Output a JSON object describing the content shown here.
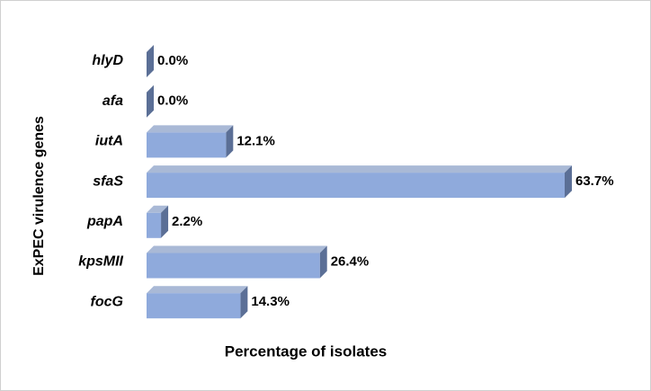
{
  "chart_data": {
    "type": "bar3d_horizontal",
    "axis_labels": {
      "y": "ExPEC virulence genes",
      "x": "Percentage of isolates"
    },
    "categories": [
      "hlyD",
      "afa",
      "iutA",
      "sfaS",
      "papA",
      "kpsMII",
      "focG"
    ],
    "values": [
      0,
      0,
      12.1,
      63.7,
      2.2,
      26.4,
      14.3
    ],
    "value_labels": [
      "0.0%",
      "0.0%",
      "12.1%",
      "63.7%",
      "2.2%",
      "26.4%",
      "14.3%"
    ],
    "color": "#8faadc"
  }
}
